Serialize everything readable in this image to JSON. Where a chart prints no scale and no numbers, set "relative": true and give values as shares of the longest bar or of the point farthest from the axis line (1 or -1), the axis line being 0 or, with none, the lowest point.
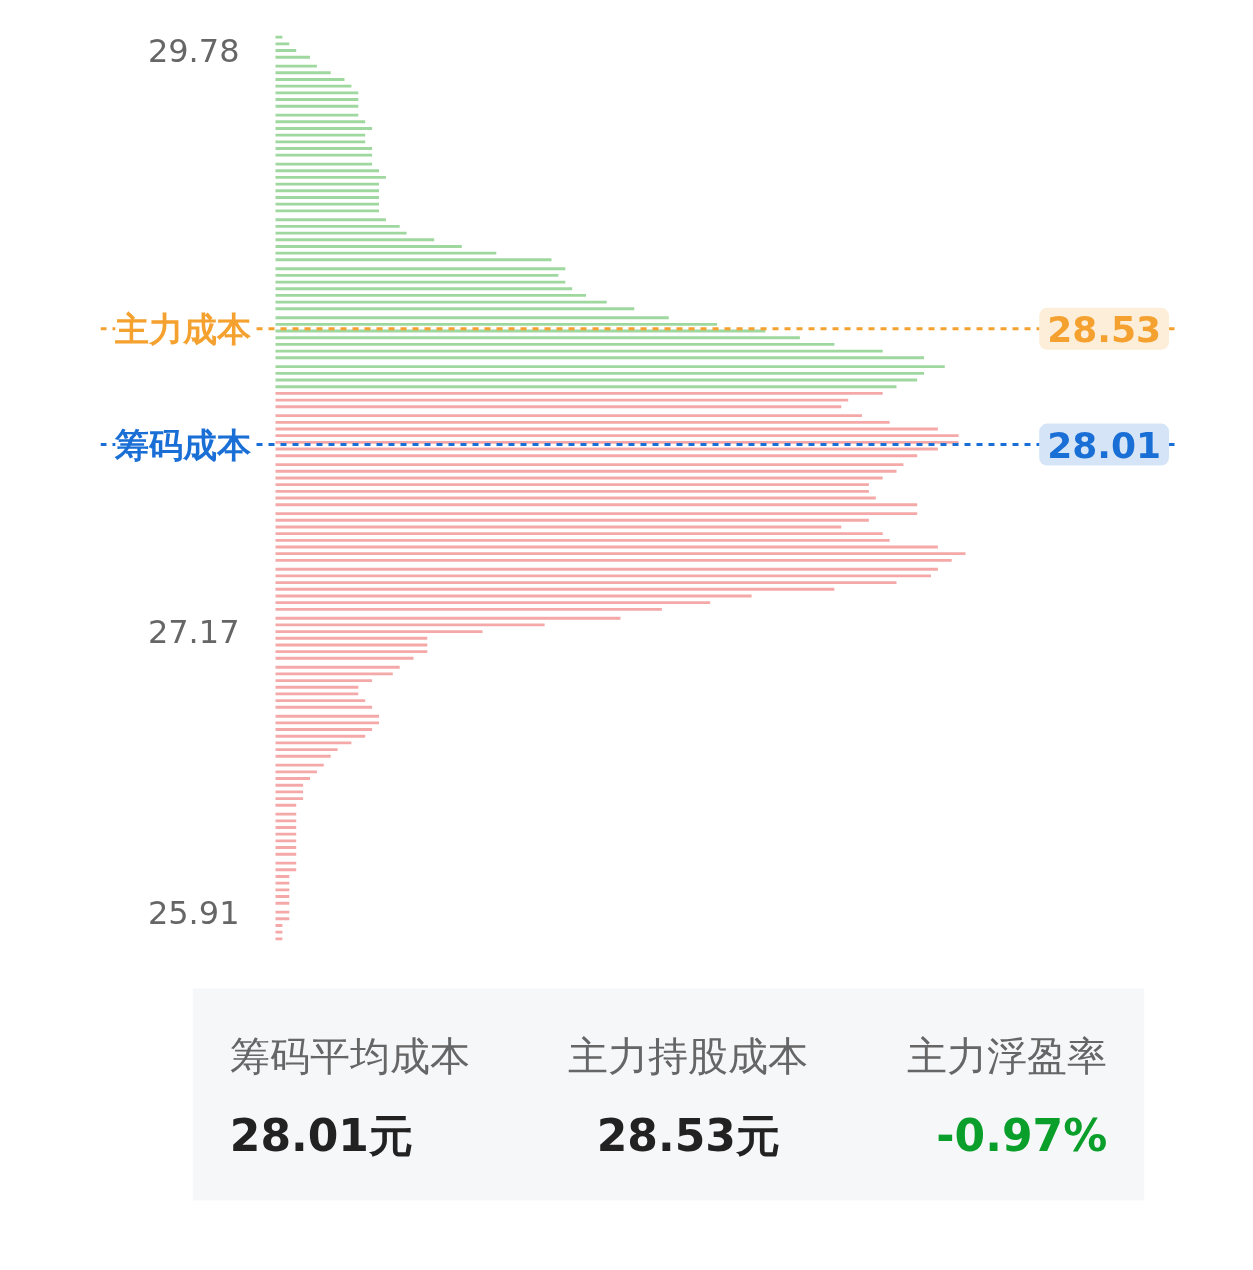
{
  "chart_data": [
    {
      "type": "bar",
      "orientation": "horizontal",
      "relative": true,
      "tick_labels": "y",
      "grid": false,
      "annotations": [
        {
          "text": "28.53",
          "y": 28.53
        },
        {
          "text": "28.01",
          "y": 28.01
        }
      ],
      "ylim": [
        25.76,
        29.87
      ],
      "yticks": [
        29.78,
        27.17,
        25.91
      ],
      "series": [
        {
          "color": "#9fd89f",
          "x": [
            29.84,
            29.81,
            29.78,
            29.75,
            29.71,
            29.68,
            29.65,
            29.62,
            29.59,
            29.56,
            29.53,
            29.49,
            29.46,
            29.43,
            29.4,
            29.37,
            29.34,
            29.31,
            29.27,
            29.24,
            29.21,
            29.18,
            29.15,
            29.12,
            29.09,
            29.06,
            29.02,
            28.99,
            28.96,
            28.93,
            28.9,
            28.87,
            28.84,
            28.8,
            28.77,
            28.74,
            28.71,
            28.68,
            28.65,
            28.62,
            28.58,
            28.55,
            28.52,
            28.49,
            28.46,
            28.43,
            28.4,
            28.36,
            28.33,
            28.3,
            28.27
          ],
          "values": [
            0.01,
            0.02,
            0.03,
            0.05,
            0.06,
            0.08,
            0.1,
            0.11,
            0.12,
            0.12,
            0.12,
            0.12,
            0.13,
            0.14,
            0.13,
            0.13,
            0.14,
            0.14,
            0.14,
            0.15,
            0.16,
            0.15,
            0.15,
            0.15,
            0.15,
            0.15,
            0.16,
            0.18,
            0.19,
            0.23,
            0.27,
            0.32,
            0.4,
            0.42,
            0.41,
            0.42,
            0.43,
            0.45,
            0.48,
            0.52,
            0.57,
            0.64,
            0.71,
            0.76,
            0.81,
            0.88,
            0.94,
            0.97,
            0.94,
            0.93,
            0.9
          ]
        },
        {
          "color": "#f5a8a8",
          "x": [
            28.24,
            28.21,
            28.18,
            28.14,
            28.11,
            28.08,
            28.05,
            28.02,
            27.99,
            27.96,
            27.92,
            27.89,
            27.86,
            27.83,
            27.8,
            27.77,
            27.74,
            27.7,
            27.67,
            27.64,
            27.61,
            27.58,
            27.55,
            27.52,
            27.49,
            27.45,
            27.42,
            27.39,
            27.36,
            27.33,
            27.3,
            27.27,
            27.23,
            27.2,
            27.17,
            27.14,
            27.11,
            27.08,
            27.05,
            27.01,
            26.98,
            26.95,
            26.92,
            26.89,
            26.86,
            26.83,
            26.79,
            26.76,
            26.73,
            26.7,
            26.67,
            26.64,
            26.61,
            26.57,
            26.54,
            26.51,
            26.48,
            26.45,
            26.42,
            26.39,
            26.35,
            26.32,
            26.29,
            26.26,
            26.23,
            26.2,
            26.17,
            26.13,
            26.1,
            26.07,
            26.04,
            26.01,
            25.98,
            25.95,
            25.91,
            25.88,
            25.85,
            25.82,
            25.79
          ],
          "values": [
            0.88,
            0.83,
            0.82,
            0.85,
            0.89,
            0.96,
            0.99,
            0.99,
            0.96,
            0.93,
            0.91,
            0.9,
            0.88,
            0.86,
            0.86,
            0.87,
            0.93,
            0.93,
            0.86,
            0.82,
            0.88,
            0.89,
            0.96,
            1.0,
            0.98,
            0.96,
            0.95,
            0.9,
            0.81,
            0.69,
            0.63,
            0.56,
            0.5,
            0.39,
            0.3,
            0.22,
            0.22,
            0.22,
            0.2,
            0.18,
            0.17,
            0.14,
            0.12,
            0.12,
            0.13,
            0.14,
            0.15,
            0.15,
            0.14,
            0.13,
            0.11,
            0.09,
            0.08,
            0.07,
            0.06,
            0.05,
            0.04,
            0.04,
            0.04,
            0.03,
            0.03,
            0.03,
            0.03,
            0.03,
            0.03,
            0.03,
            0.03,
            0.03,
            0.03,
            0.02,
            0.02,
            0.02,
            0.02,
            0.02,
            0.02,
            0.02,
            0.01,
            0.01,
            0.01
          ]
        }
      ],
      "ref_lines": [
        {
          "axis": "y",
          "value": 28.53,
          "label": "主力成本",
          "color": "#f4a12f",
          "line_style": "dashed"
        },
        {
          "axis": "y",
          "value": 28.01,
          "label": "筹码成本",
          "color": "#1a6fd6",
          "line_style": "dashed"
        }
      ]
    },
    {
      "type": "other",
      "annotations": [
        "筹码平均成本",
        "28.01元",
        "主力持股成本",
        "28.53元",
        "主力浮盈率",
        "-0.97%"
      ]
    }
  ]
}
